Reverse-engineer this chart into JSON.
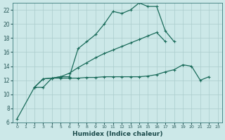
{
  "xlabel": "Humidex (Indice chaleur)",
  "bg_color": "#cce8e8",
  "grid_color": "#aacccc",
  "line_color": "#1a6b5a",
  "xlim": [
    -0.5,
    23.5
  ],
  "ylim": [
    6,
    23
  ],
  "yticks": [
    6,
    8,
    10,
    12,
    14,
    16,
    18,
    20,
    22
  ],
  "line1_x": [
    0,
    2,
    3,
    4,
    5,
    6,
    7,
    8,
    9,
    10,
    11,
    12,
    13,
    14,
    15,
    16,
    17,
    18
  ],
  "line1_y": [
    6.5,
    11,
    11,
    12.3,
    12.5,
    12.5,
    16.5,
    17.5,
    18.5,
    20.0,
    21.8,
    21.5,
    22.0,
    23.0,
    22.5,
    22.5,
    19.0,
    17.5
  ],
  "line2_x": [
    2,
    3,
    4,
    5,
    6,
    7,
    8,
    9,
    10,
    11,
    12,
    13,
    14,
    15,
    16,
    17,
    18,
    19,
    20,
    21,
    22
  ],
  "line2_y": [
    11.0,
    12.2,
    12.3,
    12.3,
    12.3,
    12.3,
    12.4,
    12.4,
    12.5,
    12.5,
    12.5,
    12.5,
    12.5,
    12.6,
    12.8,
    13.2,
    13.5,
    14.2,
    14.0,
    12.0,
    12.5
  ],
  "line3_x": [
    2,
    3,
    4,
    5,
    6,
    7,
    8,
    9,
    10,
    11,
    12,
    13,
    14,
    15,
    16,
    17
  ],
  "line3_y": [
    11.0,
    12.2,
    12.3,
    12.5,
    13.0,
    13.8,
    14.5,
    15.2,
    15.8,
    16.3,
    16.8,
    17.3,
    17.8,
    18.3,
    18.8,
    17.5
  ]
}
